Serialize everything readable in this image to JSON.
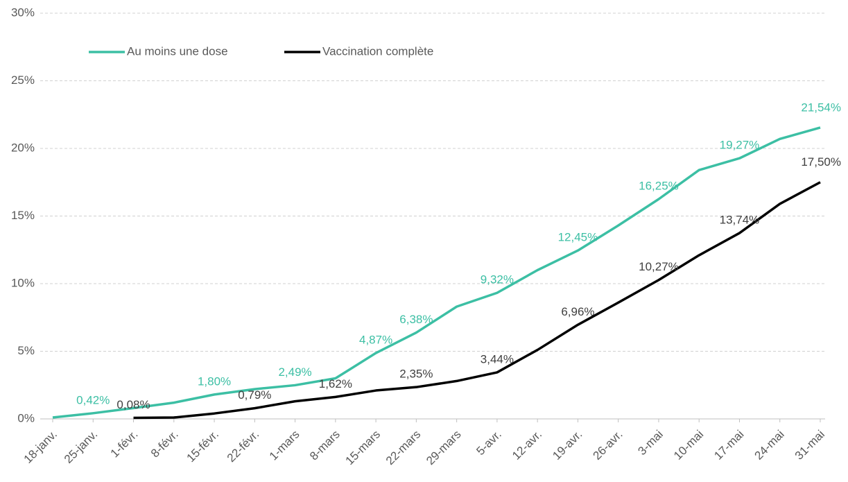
{
  "chart_data": {
    "type": "line",
    "categories": [
      "18-janv.",
      "25-janv.",
      "1-févr.",
      "8-févr.",
      "15-févr.",
      "22-févr.",
      "1-mars",
      "8-mars",
      "15-mars",
      "22-mars",
      "29-mars",
      "5-avr.",
      "12-avr.",
      "19-avr.",
      "26-avr.",
      "3-mai",
      "10-mai",
      "17-mai",
      "24-mai",
      "31-mai"
    ],
    "series": [
      {
        "name": "Au moins une dose",
        "color": "#3cbfa4",
        "values": [
          0.1,
          0.42,
          0.8,
          1.2,
          1.8,
          2.2,
          2.49,
          3.0,
          4.87,
          6.38,
          8.3,
          9.32,
          11.0,
          12.45,
          14.3,
          16.25,
          18.4,
          19.27,
          20.7,
          21.54
        ],
        "value_labels": [
          null,
          "0,42%",
          null,
          null,
          "1,80%",
          null,
          "2,49%",
          null,
          "4,87%",
          "6,38%",
          null,
          "9,32%",
          null,
          "12,45%",
          null,
          "16,25%",
          null,
          "19,27%",
          null,
          "21,54%"
        ]
      },
      {
        "name": "Vaccination complète",
        "color": "#000000",
        "values": [
          null,
          null,
          0.08,
          0.1,
          0.4,
          0.79,
          1.3,
          1.62,
          2.1,
          2.35,
          2.8,
          3.44,
          5.1,
          6.96,
          8.6,
          10.27,
          12.1,
          13.74,
          15.9,
          17.5
        ],
        "value_labels": [
          null,
          null,
          "0,08%",
          null,
          null,
          "0,79%",
          null,
          "1,62%",
          null,
          "2,35%",
          null,
          "3,44%",
          null,
          "6,96%",
          null,
          "10,27%",
          null,
          "13,74%",
          null,
          "17,50%"
        ]
      }
    ],
    "ylim": [
      0,
      30
    ],
    "yticks": [
      {
        "value": 0,
        "label": "0%"
      },
      {
        "value": 5,
        "label": "5%"
      },
      {
        "value": 10,
        "label": "10%"
      },
      {
        "value": 15,
        "label": "15%"
      },
      {
        "value": 20,
        "label": "20%"
      },
      {
        "value": 25,
        "label": "25%"
      },
      {
        "value": 30,
        "label": "30%"
      }
    ],
    "grid": true,
    "legend": "top"
  }
}
